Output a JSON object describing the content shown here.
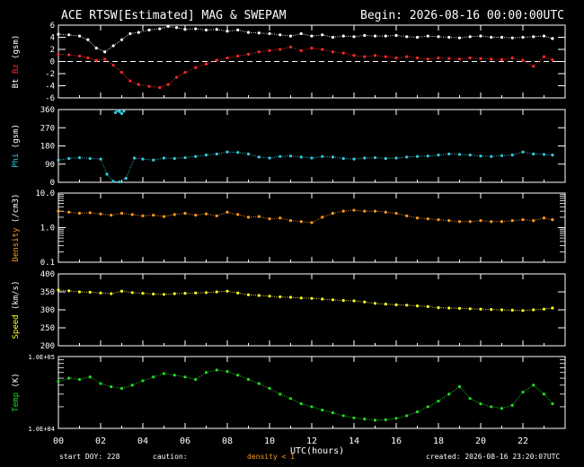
{
  "header": {
    "title": "ACE RTSW[Estimated] MAG & SWEPAM",
    "begin": "Begin: 2026-08-16 00:00:00UTC"
  },
  "footer": {
    "start_doy": "start DOY: 228",
    "caution": "caution:",
    "density_note": "density < 1",
    "created": "created: 2026-08-16 23:20:07UTC"
  },
  "colors": {
    "bt": "#ffffff",
    "bz": "#ff2a2a",
    "phi": "#33ccdd",
    "density": "#ff9a1e",
    "speed": "#ffff22",
    "temp": "#22dd22",
    "axes": "#ffffff",
    "background": "#000000"
  },
  "chart_data": {
    "type": "scatter",
    "xlabel": "UTC(hours)",
    "xlim": [
      0,
      24
    ],
    "x_ticks": [
      "00",
      "02",
      "04",
      "06",
      "08",
      "10",
      "12",
      "14",
      "16",
      "18",
      "20",
      "22"
    ],
    "panels": [
      {
        "id": "mag",
        "ylabel_parts": [
          {
            "text": "Bt",
            "color": "#ffffff"
          },
          {
            "text": " ",
            "color": "#ffffff"
          },
          {
            "text": "Bz",
            "color": "#ff2a2a"
          },
          {
            "text": " (gsm)",
            "color": "#ffffff"
          }
        ],
        "scale": "linear",
        "ylim": [
          -6,
          6
        ],
        "ticks": [
          "6",
          "4",
          "2",
          "0",
          "-2",
          "-4",
          "-6"
        ],
        "tick_values": [
          6,
          4,
          2,
          0,
          -2,
          -4,
          -6
        ],
        "zero_line": true,
        "series": [
          {
            "name": "Bt",
            "color": "#ffffff",
            "x": [
              0,
              0.5,
              1,
              1.4,
              1.8,
              2.2,
              2.6,
              3,
              3.4,
              3.8,
              4.3,
              4.8,
              5.2,
              5.6,
              6,
              6.5,
              7,
              7.5,
              8,
              8.5,
              9,
              9.5,
              10,
              10.5,
              11,
              11.5,
              12,
              12.5,
              13,
              13.5,
              14,
              14.5,
              15,
              15.5,
              16,
              16.5,
              17,
              17.5,
              18,
              18.5,
              19,
              19.5,
              20,
              20.5,
              21,
              21.5,
              22,
              22.5,
              23,
              23.4
            ],
            "y": [
              4.5,
              4.4,
              4.2,
              3.6,
              2.2,
              1.6,
              2.6,
              3.6,
              4.6,
              4.8,
              5.2,
              5.4,
              5.8,
              5.6,
              5.3,
              5.4,
              5.2,
              5.3,
              5.0,
              5.2,
              4.8,
              4.7,
              4.6,
              4.4,
              4.2,
              4.6,
              4.2,
              4.4,
              4.0,
              4.2,
              4.1,
              4.3,
              4.2,
              4.2,
              4.3,
              4.1,
              4.0,
              4.2,
              4.1,
              4.0,
              3.9,
              4.1,
              4.2,
              4.0,
              4.0,
              3.9,
              4.0,
              4.1,
              4.2,
              3.8
            ]
          },
          {
            "name": "Bz",
            "color": "#ff2a2a",
            "x": [
              0,
              0.5,
              1,
              1.4,
              1.8,
              2.2,
              2.6,
              3,
              3.4,
              3.8,
              4.3,
              4.8,
              5.2,
              5.6,
              6,
              6.5,
              7,
              7.5,
              8,
              8.5,
              9,
              9.5,
              10,
              10.5,
              11,
              11.5,
              12,
              12.5,
              13,
              13.5,
              14,
              14.5,
              15,
              15.5,
              16,
              16.5,
              17,
              17.5,
              18,
              18.5,
              19,
              19.5,
              20,
              20.5,
              21,
              21.5,
              22,
              22.5,
              23,
              23.4
            ],
            "y": [
              1.2,
              1.1,
              0.9,
              0.6,
              0.2,
              0.4,
              -0.6,
              -1.8,
              -3.2,
              -3.8,
              -4.1,
              -4.3,
              -3.8,
              -2.6,
              -1.8,
              -1.0,
              -0.4,
              0.2,
              0.6,
              0.9,
              1.2,
              1.6,
              1.8,
              2.0,
              2.4,
              1.8,
              2.2,
              2.0,
              1.6,
              1.4,
              1.0,
              0.8,
              1.0,
              0.8,
              0.6,
              0.8,
              0.6,
              0.4,
              0.6,
              0.5,
              0.4,
              0.6,
              0.5,
              0.4,
              0.3,
              0.6,
              0.2,
              -0.8,
              0.8,
              0.3
            ]
          }
        ]
      },
      {
        "id": "phi",
        "ylabel_parts": [
          {
            "text": "Phi",
            "color": "#33ccdd"
          },
          {
            "text": " (gsm)",
            "color": "#ffffff"
          }
        ],
        "scale": "linear",
        "ylim": [
          0,
          360
        ],
        "ticks": [
          "360",
          "270",
          "180",
          "90",
          "0"
        ],
        "tick_values": [
          360,
          270,
          180,
          90,
          0
        ],
        "series": [
          {
            "name": "Phi",
            "color": "#33ccdd",
            "x": [
              0,
              0.5,
              1,
              1.5,
              2,
              2.3,
              2.6,
              2.9,
              3.2,
              3.6,
              4,
              4.5,
              5,
              5.5,
              6,
              6.5,
              7,
              7.5,
              8,
              8.5,
              9,
              9.5,
              10,
              10.5,
              11,
              11.5,
              12,
              12.5,
              13,
              13.5,
              14,
              14.5,
              15,
              15.5,
              16,
              16.5,
              17,
              17.5,
              18,
              18.5,
              19,
              19.5,
              20,
              20.5,
              21,
              21.5,
              22,
              22.5,
              23,
              23.4
            ],
            "y": [
              110,
              118,
              122,
              118,
              115,
              40,
              5,
              2,
              20,
              120,
              115,
              110,
              120,
              118,
              122,
              128,
              135,
              140,
              150,
              148,
              140,
              125,
              120,
              128,
              130,
              125,
              120,
              128,
              125,
              118,
              115,
              120,
              122,
              118,
              120,
              125,
              128,
              130,
              135,
              140,
              138,
              135,
              130,
              128,
              132,
              135,
              150,
              140,
              138,
              135
            ]
          },
          {
            "name": "Phi-wrap",
            "color": "#33ccdd",
            "x": [
              2.7,
              2.8,
              2.9,
              3.0,
              3.1
            ],
            "y": [
              345,
              355,
              350,
              340,
              352
            ]
          }
        ]
      },
      {
        "id": "density",
        "ylabel_parts": [
          {
            "text": "Density",
            "color": "#ff9a1e"
          },
          {
            "text": " (/cm3)",
            "color": "#ffffff"
          }
        ],
        "scale": "log",
        "ylim": [
          0.1,
          10
        ],
        "ticks": [
          "10.0",
          "1.0",
          "0.1"
        ],
        "tick_values": [
          10,
          1,
          0.1
        ],
        "series": [
          {
            "name": "Density",
            "color": "#ff9a1e",
            "x": [
              0,
              0.5,
              1,
              1.5,
              2,
              2.5,
              3,
              3.5,
              4,
              4.5,
              5,
              5.5,
              6,
              6.5,
              7,
              7.5,
              8,
              8.5,
              9,
              9.5,
              10,
              10.5,
              11,
              11.5,
              12,
              12.5,
              13,
              13.5,
              14,
              14.5,
              15,
              15.5,
              16,
              16.5,
              17,
              17.5,
              18,
              18.5,
              19,
              19.5,
              20,
              20.5,
              21,
              21.5,
              22,
              22.5,
              23,
              23.4
            ],
            "y": [
              3.0,
              2.8,
              2.6,
              2.7,
              2.5,
              2.3,
              2.6,
              2.4,
              2.2,
              2.3,
              2.1,
              2.4,
              2.6,
              2.3,
              2.5,
              2.2,
              2.8,
              2.4,
              2.0,
              2.1,
              1.8,
              1.9,
              1.6,
              1.5,
              1.4,
              2.0,
              2.6,
              3.0,
              3.2,
              3.0,
              3.0,
              2.8,
              2.6,
              2.2,
              1.9,
              1.8,
              1.7,
              1.6,
              1.5,
              1.5,
              1.6,
              1.5,
              1.5,
              1.6,
              1.7,
              1.6,
              1.9,
              1.7
            ]
          }
        ]
      },
      {
        "id": "speed",
        "ylabel_parts": [
          {
            "text": "Speed",
            "color": "#ffff22"
          },
          {
            "text": " (km/s)",
            "color": "#ffffff"
          }
        ],
        "scale": "linear",
        "ylim": [
          200,
          400
        ],
        "ticks": [
          "400",
          "350",
          "300",
          "250",
          "200"
        ],
        "tick_values": [
          400,
          350,
          300,
          250,
          200
        ],
        "series": [
          {
            "name": "Speed",
            "color": "#ffff22",
            "x": [
              0,
              0.5,
              1,
              1.5,
              2,
              2.5,
              3,
              3.5,
              4,
              4.5,
              5,
              5.5,
              6,
              6.5,
              7,
              7.5,
              8,
              8.5,
              9,
              9.5,
              10,
              10.5,
              11,
              11.5,
              12,
              12.5,
              13,
              13.5,
              14,
              14.5,
              15,
              15.5,
              16,
              16.5,
              17,
              17.5,
              18,
              18.5,
              19,
              19.5,
              20,
              20.5,
              21,
              21.5,
              22,
              22.5,
              23,
              23.4
            ],
            "y": [
              355,
              353,
              350,
              349,
              347,
              345,
              352,
              348,
              346,
              344,
              343,
              345,
              346,
              347,
              348,
              350,
              352,
              347,
              342,
              340,
              338,
              336,
              335,
              333,
              332,
              330,
              328,
              326,
              325,
              322,
              318,
              316,
              314,
              313,
              311,
              309,
              306,
              305,
              304,
              303,
              302,
              301,
              300,
              299,
              298,
              300,
              302,
              305
            ]
          }
        ]
      },
      {
        "id": "temp",
        "ylabel_parts": [
          {
            "text": "Temp",
            "color": "#22dd22"
          },
          {
            "text": " (K)",
            "color": "#ffffff"
          }
        ],
        "scale": "log",
        "ylim": [
          10000,
          100000
        ],
        "ticks": [
          "1.0E+05",
          "1.0E+04"
        ],
        "tick_values": [
          100000,
          10000
        ],
        "series": [
          {
            "name": "Temp",
            "color": "#22dd22",
            "x": [
              0,
              0.5,
              1,
              1.5,
              2,
              2.5,
              3,
              3.5,
              4,
              4.5,
              5,
              5.5,
              6,
              6.5,
              7,
              7.5,
              8,
              8.5,
              9,
              9.5,
              10,
              10.5,
              11,
              11.5,
              12,
              12.5,
              13,
              13.5,
              14,
              14.5,
              15,
              15.5,
              16,
              16.5,
              17,
              17.5,
              18,
              18.5,
              19,
              19.5,
              20,
              20.5,
              21,
              21.5,
              22,
              22.5,
              23,
              23.4
            ],
            "y": [
              45000,
              50000,
              48000,
              52000,
              42000,
              38000,
              36000,
              40000,
              46000,
              52000,
              58000,
              55000,
              52000,
              48000,
              60000,
              65000,
              62000,
              55000,
              48000,
              42000,
              36000,
              30000,
              26000,
              22000,
              20000,
              18000,
              16500,
              15000,
              14000,
              13500,
              13000,
              13200,
              13800,
              15000,
              17000,
              20000,
              24000,
              30000,
              38000,
              26000,
              22000,
              20000,
              19000,
              21000,
              32000,
              40000,
              30000,
              22000
            ]
          }
        ]
      }
    ]
  }
}
